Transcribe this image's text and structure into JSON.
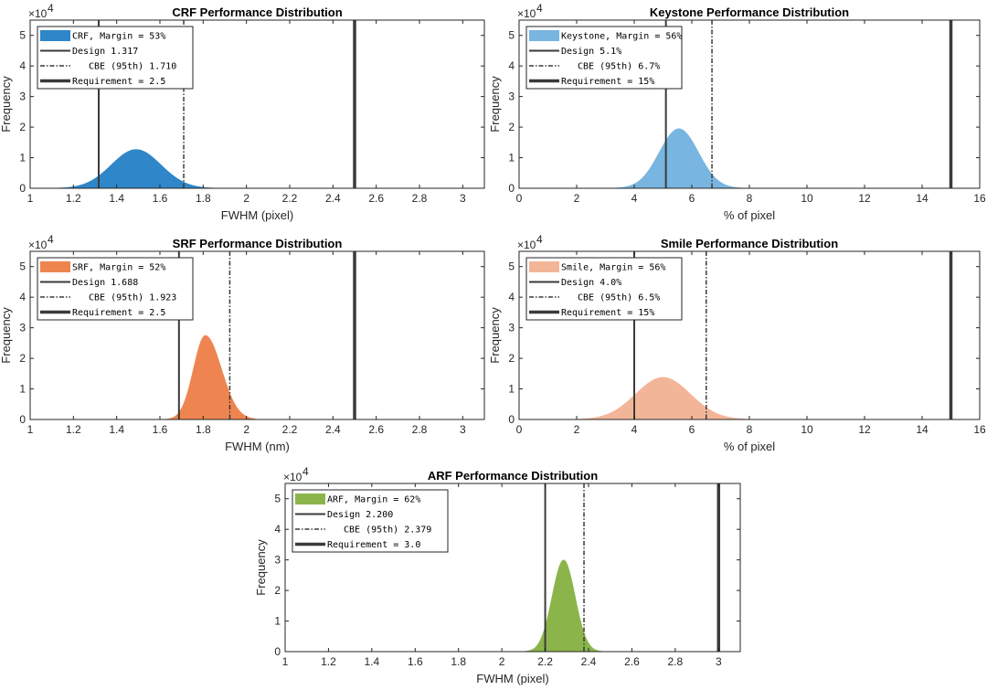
{
  "colors": {
    "axis": "#262626",
    "ref_line": "#3a3a3a"
  },
  "chart_data": [
    {
      "type": "area",
      "title": "CRF Performance Distribution",
      "xlabel": "FWHM (pixel)",
      "ylabel": "Frequency",
      "xlim": [
        1,
        3.1
      ],
      "ylim": [
        0,
        5.5
      ],
      "x_ticks": [
        "1",
        "1.2",
        "1.4",
        "1.6",
        "1.8",
        "2",
        "2.2",
        "2.4",
        "2.6",
        "2.8",
        "3"
      ],
      "y_ticks": [
        "0",
        "1",
        "2",
        "3",
        "4",
        "5"
      ],
      "y_exponent": "×10",
      "y_exponent_power": "4",
      "fill_color": "#2f86c8",
      "distribution": {
        "mean": 1.49,
        "sd": 0.115,
        "peak": 1.27,
        "skew": 0
      },
      "design": 1.317,
      "cbe": 1.71,
      "requirement": 2.5,
      "legend": [
        "CRF, Margin = 53%",
        "Design 1.317",
        "CBE (95th) 1.710",
        "Requirement = 2.5"
      ]
    },
    {
      "type": "area",
      "title": "Keystone Performance Distribution",
      "xlabel": "% of pixel",
      "ylabel": "Frequency",
      "xlim": [
        0,
        16
      ],
      "ylim": [
        0,
        5.5
      ],
      "x_ticks": [
        "0",
        "2",
        "4",
        "6",
        "8",
        "10",
        "12",
        "14",
        "16"
      ],
      "y_ticks": [
        "0",
        "1",
        "2",
        "3",
        "4",
        "5"
      ],
      "y_exponent": "×10",
      "y_exponent_power": "4",
      "fill_color": "#78b5e0",
      "distribution": {
        "mean": 5.55,
        "sd": 0.68,
        "peak": 1.95,
        "skew": 0
      },
      "design": 5.1,
      "cbe": 6.7,
      "requirement": 15,
      "legend": [
        "Keystone, Margin = 56%",
        "Design 5.1%",
        "CBE (95th) 6.7%",
        "Requirement = 15%"
      ]
    },
    {
      "type": "area",
      "title": "SRF Performance Distribution",
      "xlabel": "FWHM (nm)",
      "ylabel": "Frequency",
      "xlim": [
        1,
        3.1
      ],
      "ylim": [
        0,
        5.5
      ],
      "x_ticks": [
        "1",
        "1.2",
        "1.4",
        "1.6",
        "1.8",
        "2",
        "2.2",
        "2.4",
        "2.6",
        "2.8",
        "3"
      ],
      "y_ticks": [
        "0",
        "1",
        "2",
        "3",
        "4",
        "5"
      ],
      "y_exponent": "×10",
      "y_exponent_power": "4",
      "fill_color": "#ee8550",
      "distribution": {
        "mean": 1.81,
        "sd": 0.055,
        "peak": 2.75,
        "skew": 0.035
      },
      "design": 1.688,
      "cbe": 1.923,
      "requirement": 2.5,
      "legend": [
        "SRF, Margin = 52%",
        "Design 1.688",
        "CBE (95th) 1.923",
        "Requirement = 2.5"
      ]
    },
    {
      "type": "area",
      "title": "Smile Performance Distribution",
      "xlabel": "% of pixel",
      "ylabel": "Frequency",
      "xlim": [
        0,
        16
      ],
      "ylim": [
        0,
        5.5
      ],
      "x_ticks": [
        "0",
        "2",
        "4",
        "6",
        "8",
        "10",
        "12",
        "14",
        "16"
      ],
      "y_ticks": [
        "0",
        "1",
        "2",
        "3",
        "4",
        "5"
      ],
      "y_exponent": "×10",
      "y_exponent_power": "4",
      "fill_color": "#f3b598",
      "distribution": {
        "mean": 5.0,
        "sd": 0.95,
        "peak": 1.38,
        "skew": 0
      },
      "design": 4.0,
      "cbe": 6.5,
      "requirement": 15,
      "legend": [
        "Smile, Margin = 56%",
        "Design 4.0%",
        "CBE (95th) 6.5%",
        "Requirement = 15%"
      ]
    },
    {
      "type": "area",
      "title": "ARF Performance Distribution",
      "xlabel": "FWHM (pixel)",
      "ylabel": "Frequency",
      "xlim": [
        1,
        3.1
      ],
      "ylim": [
        0,
        5.5
      ],
      "x_ticks": [
        "1",
        "1.2",
        "1.4",
        "1.6",
        "1.8",
        "2",
        "2.2",
        "2.4",
        "2.6",
        "2.8",
        "3"
      ],
      "y_ticks": [
        "0",
        "1",
        "2",
        "3",
        "4",
        "5"
      ],
      "y_exponent": "×10",
      "y_exponent_power": "4",
      "fill_color": "#8bb54a",
      "distribution": {
        "mean": 2.285,
        "sd": 0.053,
        "peak": 3.0,
        "skew": 0
      },
      "design": 2.2,
      "cbe": 2.379,
      "requirement": 3.0,
      "legend": [
        "ARF, Margin = 62%",
        "Design 2.200",
        "CBE (95th) 2.379",
        "Requirement = 3.0"
      ]
    }
  ]
}
